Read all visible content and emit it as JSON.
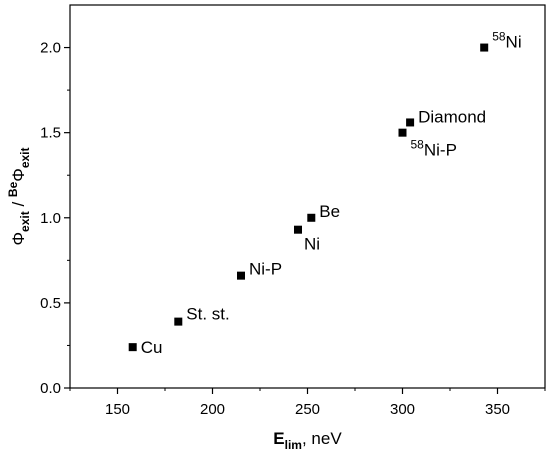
{
  "chart_data": {
    "type": "scatter",
    "title": "",
    "xlabel": {
      "main": "E",
      "sub": "lim",
      "rest": ", neV"
    },
    "ylabel": {
      "phi1": "Φ",
      "sub1": "exit",
      "sep": " / ",
      "sup": "Be",
      "phi2": "Φ",
      "sub2": "exit"
    },
    "xlim": [
      125,
      375
    ],
    "ylim": [
      0.0,
      2.25
    ],
    "xticks": [
      150,
      200,
      250,
      300,
      350
    ],
    "yticks": [
      0.0,
      0.5,
      1.0,
      1.5,
      2.0
    ],
    "xtick_labels": [
      "150",
      "200",
      "250",
      "300",
      "350"
    ],
    "ytick_labels": [
      "0.0",
      "0.5",
      "1.0",
      "1.5",
      "2.0"
    ],
    "grid": false,
    "marker": "square",
    "marker_color": "#000000",
    "points": [
      {
        "x": 158,
        "y": 0.24,
        "label": "Cu",
        "label_sup": ""
      },
      {
        "x": 182,
        "y": 0.39,
        "label": "St. st.",
        "label_sup": ""
      },
      {
        "x": 215,
        "y": 0.66,
        "label": "Ni-P",
        "label_sup": ""
      },
      {
        "x": 245,
        "y": 0.93,
        "label": "Ni",
        "label_sup": ""
      },
      {
        "x": 252,
        "y": 1.0,
        "label": "Be",
        "label_sup": ""
      },
      {
        "x": 300,
        "y": 1.5,
        "label": "Ni-P",
        "label_sup": "58"
      },
      {
        "x": 304,
        "y": 1.56,
        "label": "Diamond",
        "label_sup": ""
      },
      {
        "x": 343,
        "y": 2.0,
        "label": "Ni",
        "label_sup": "58"
      }
    ]
  }
}
